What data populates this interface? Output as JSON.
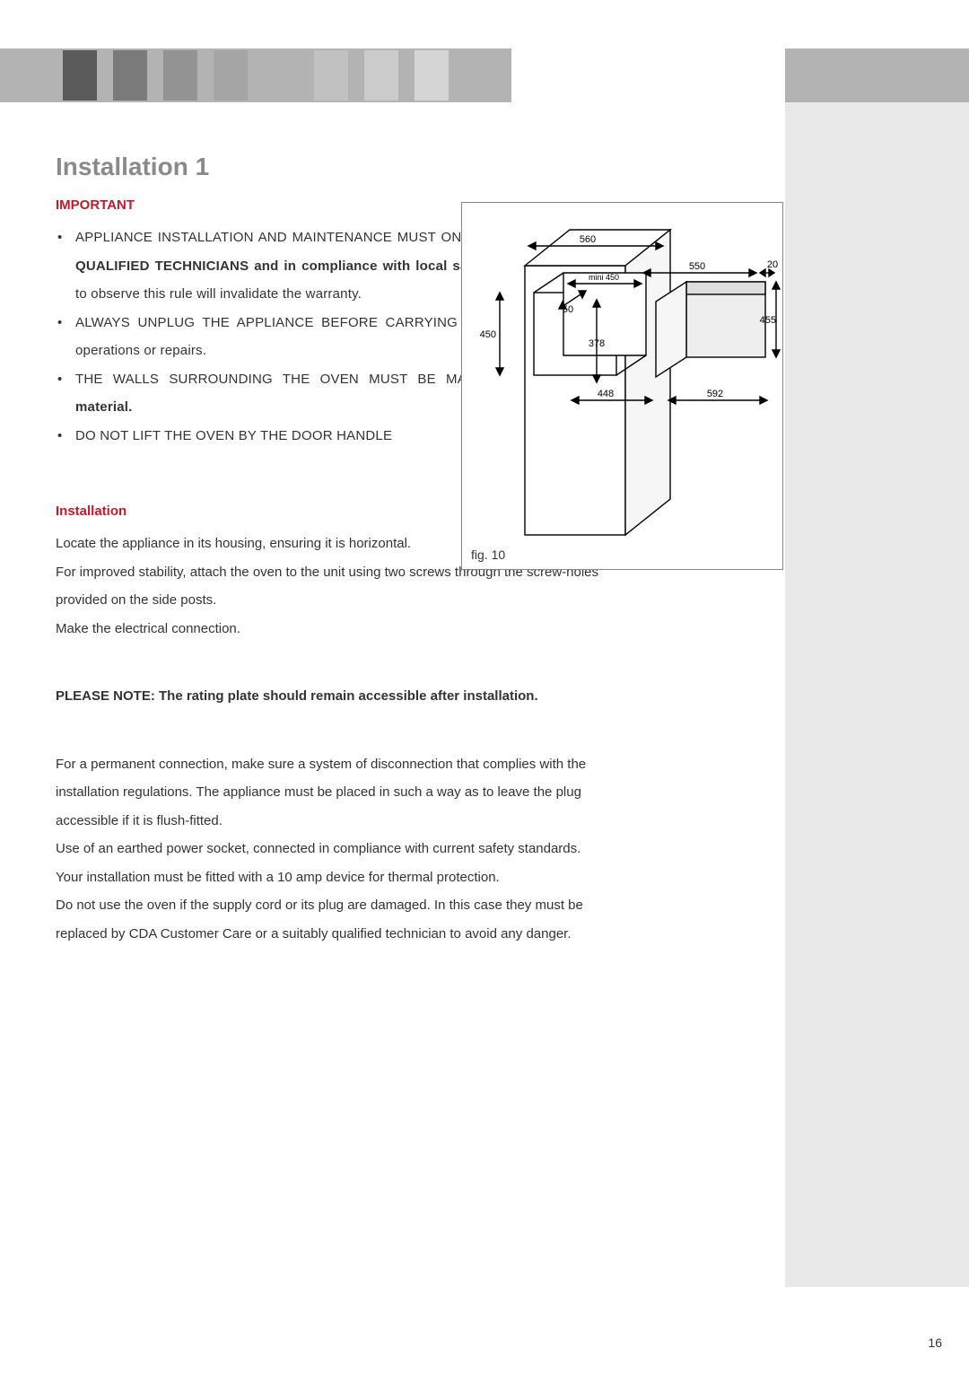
{
  "header": {
    "square_colors": [
      "#5b5b5b",
      "#7a7a7a",
      "#939393",
      "#a5a5a5",
      "#b3b3b3",
      "#c1c1c1",
      "#cbcbcb",
      "#d5d5d5"
    ]
  },
  "title": {
    "text": "Installation 1",
    "color": "#8a8a8a",
    "fontsize": 28
  },
  "important_label": {
    "text": "IMPORTANT",
    "color": "#c71829"
  },
  "bullets": [
    {
      "pre": "APPLIANCE INSTALLATION AND MAINTENANCE MUST ONLY BE CARRIED ",
      "bold": "out by QUALIFIED TECHNICIANS and in compliance with local safety standards.",
      "post": " Failure to observe this rule will invalidate the warranty."
    },
    {
      "pre": "ALWAYS UNPLUG THE APPLIANCE BEFORE CARRYING OUT ANY ",
      "bold": "",
      "post": "maintenance operations or repairs."
    },
    {
      "pre": "THE WALLS SURROUNDING THE OVEN MUST BE MADE OF ",
      "bold": "heat-resistant material.",
      "post": ""
    },
    {
      "pre": "DO NOT LIFT THE OVEN BY THE DOOR HANDLE",
      "bold": "",
      "post": ""
    }
  ],
  "install_label": {
    "text": "Installation",
    "color": "#c71829"
  },
  "install_body": [
    "Locate the appliance in its housing, ensuring it is horizontal.",
    "For improved stability, attach the oven to the unit using two screws through the screw-holes provided on the side posts.",
    "Make the electrical connection."
  ],
  "note_bold": "PLEASE NOTE: The rating plate should remain accessible after installation.",
  "body2": [
    "For a permanent connection, make sure a system of disconnection that complies with the installation regulations.  The appliance must be placed in such a way as to leave the plug accessible if it is flush-fitted.",
    "Use of an earthed power socket, connected in compliance with current safety standards.",
    "Your installation must be fitted with a 10 amp device for thermal protection.",
    "Do not use the oven if the supply cord or its plug are damaged. In this case they must be replaced by CDA Customer Care or a suitably qualified technician to avoid any danger."
  ],
  "figure": {
    "caption": "fig. 10",
    "dims": {
      "cabinet_w": "560",
      "cabinet_inner_min": "mini 450",
      "cabinet_inner_h": "450",
      "recess_w": "550",
      "recess_depth": "50",
      "oven_h_inner": "378",
      "oven_w_bottom": "448",
      "front_w": "592",
      "gap_top": "20",
      "front_h": "455"
    },
    "colors": {
      "stroke": "#000000",
      "fill_light": "#f2f2f2",
      "fill_dark": "#d0d0d0"
    }
  },
  "page_number": "16"
}
